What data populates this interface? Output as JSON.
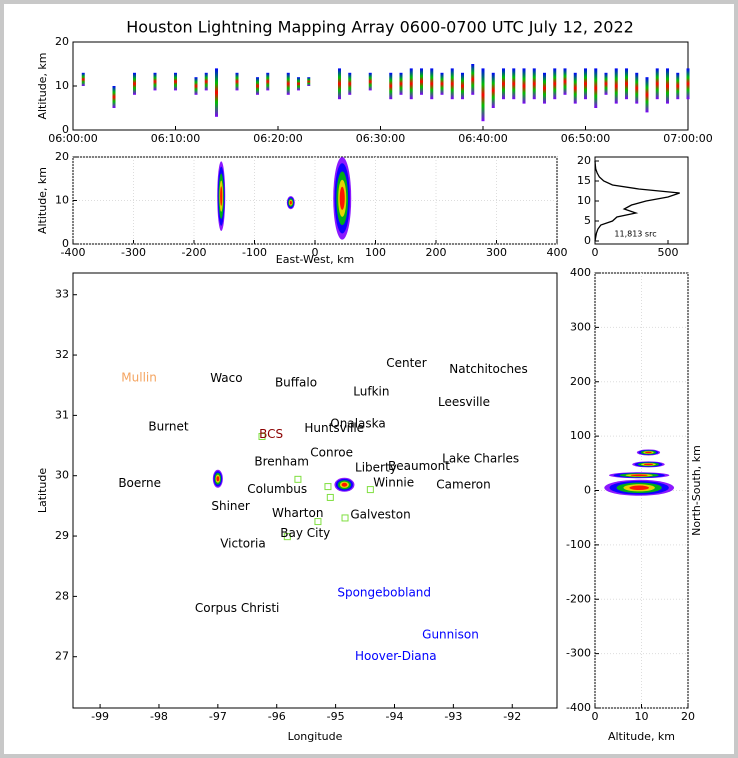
{
  "chart_data": [
    {
      "type": "flashes",
      "title": "Houston Lightning Mapping Array 0600-0700 UTC July 12, 2022",
      "ylabel": "Altitude, km",
      "xlim": [
        0,
        60
      ],
      "ylim": [
        0,
        20
      ],
      "xticks": [
        {
          "value": 0,
          "label": "06:00:00"
        },
        {
          "value": 10,
          "label": "06:10:00"
        },
        {
          "value": 20,
          "label": "06:20:00"
        },
        {
          "value": 30,
          "label": "06:30:00"
        },
        {
          "value": 40,
          "label": "06:40:00"
        },
        {
          "value": 50,
          "label": "06:50:00"
        },
        {
          "value": 60,
          "label": "07:00:00"
        }
      ],
      "yticks": [
        0,
        10,
        20
      ],
      "x": [
        1,
        4,
        6,
        8,
        10,
        12,
        13,
        14,
        16,
        18,
        19,
        21,
        22,
        23,
        26,
        27,
        29,
        31,
        32,
        33,
        34,
        35,
        36,
        37,
        38,
        39,
        40,
        41,
        42,
        43,
        44,
        45,
        46,
        47,
        48,
        49,
        50,
        51,
        52,
        53,
        54,
        55,
        56,
        57,
        58,
        59,
        60
      ],
      "low": [
        10,
        5,
        8,
        9,
        9,
        8,
        9,
        3,
        9,
        8,
        9,
        8,
        9,
        10,
        7,
        8,
        9,
        7,
        8,
        7,
        8,
        7,
        8,
        7,
        7,
        8,
        2,
        5,
        7,
        7,
        6,
        7,
        6,
        7,
        8,
        6,
        7,
        5,
        8,
        6,
        7,
        6,
        4,
        7,
        6,
        7,
        7
      ],
      "high": [
        13,
        10,
        13,
        13,
        13,
        12,
        13,
        14,
        13,
        12,
        13,
        13,
        12,
        12,
        14,
        13,
        13,
        13,
        13,
        14,
        14,
        14,
        13,
        14,
        13,
        15,
        14,
        13,
        14,
        14,
        14,
        14,
        13,
        14,
        14,
        13,
        14,
        14,
        13,
        14,
        14,
        13,
        12,
        14,
        14,
        13,
        14
      ]
    },
    {
      "type": "clusters-x",
      "xlabel": "East-West, km",
      "ylabel": "Altitude, km",
      "xlim": [
        -400,
        400
      ],
      "ylim": [
        0,
        20
      ],
      "xticks": [
        -400,
        -300,
        -200,
        -100,
        0,
        100,
        200,
        300,
        400
      ],
      "yticks": [
        0,
        10,
        20
      ],
      "grid": true,
      "ew": [
        -155,
        -40,
        45
      ],
      "low": [
        3,
        8,
        1
      ],
      "high": [
        19,
        11,
        20
      ]
    },
    {
      "type": "line",
      "annotation": "11,813 src",
      "xlim": [
        0,
        637
      ],
      "ylim": [
        -0.75,
        21
      ],
      "xticks": [
        0,
        500
      ],
      "yticks": [
        0,
        5,
        10,
        15,
        20
      ],
      "x": [
        0,
        5,
        10,
        20,
        40,
        120,
        150,
        280,
        200,
        250,
        350,
        500,
        580,
        300,
        120,
        60,
        30,
        15,
        5,
        2,
        0
      ],
      "y": [
        0,
        1,
        2,
        3,
        4,
        5,
        6,
        7,
        8,
        9,
        10,
        11,
        12,
        13,
        14,
        15,
        16,
        17,
        18,
        19,
        20
      ]
    },
    {
      "type": "map",
      "xlabel": "Longitude",
      "ylabel": "Latitude",
      "xlim": [
        -99.46,
        -91.24
      ],
      "ylim": [
        26.15,
        33.36
      ],
      "xticks": [
        -99,
        -98,
        -97,
        -96,
        -95,
        -94,
        -93,
        -92
      ],
      "yticks": [
        27,
        28,
        29,
        30,
        31,
        32,
        33
      ],
      "labels": [
        {
          "text": "Mullin",
          "lon": -98.64,
          "lat": 31.62,
          "color": "#f4a460"
        },
        {
          "text": "Waco",
          "lon": -97.13,
          "lat": 31.61,
          "color": "#000000"
        },
        {
          "text": "Buffalo",
          "lon": -96.03,
          "lat": 31.54,
          "color": "#000000"
        },
        {
          "text": "Lufkin",
          "lon": -94.7,
          "lat": 31.39,
          "color": "#000000"
        },
        {
          "text": "Center",
          "lon": -94.14,
          "lat": 31.86,
          "color": "#000000"
        },
        {
          "text": "Natchitoches",
          "lon": -93.07,
          "lat": 31.76,
          "color": "#000000"
        },
        {
          "text": "Leesville",
          "lon": -93.26,
          "lat": 31.21,
          "color": "#000000"
        },
        {
          "text": "Burnet",
          "lon": -98.18,
          "lat": 30.81,
          "color": "#000000"
        },
        {
          "text": "BCS",
          "lon": -96.3,
          "lat": 30.68,
          "color": "#8b0000"
        },
        {
          "text": "Huntsville",
          "lon": -95.53,
          "lat": 30.78,
          "color": "#000000"
        },
        {
          "text": "Onalaska",
          "lon": -95.09,
          "lat": 30.86,
          "color": "#000000"
        },
        {
          "text": "Conroe",
          "lon": -95.43,
          "lat": 30.38,
          "color": "#000000"
        },
        {
          "text": "Brenham",
          "lon": -96.38,
          "lat": 30.23,
          "color": "#000000"
        },
        {
          "text": "Liberty",
          "lon": -94.67,
          "lat": 30.13,
          "color": "#000000"
        },
        {
          "text": "Beaumont",
          "lon": -94.11,
          "lat": 30.15,
          "color": "#000000"
        },
        {
          "text": "Lake Charles",
          "lon": -93.19,
          "lat": 30.28,
          "color": "#000000"
        },
        {
          "text": "Boerne",
          "lon": -98.69,
          "lat": 29.87,
          "color": "#000000"
        },
        {
          "text": "Columbus",
          "lon": -96.5,
          "lat": 29.77,
          "color": "#000000"
        },
        {
          "text": "Winnie",
          "lon": -94.36,
          "lat": 29.88,
          "color": "#000000"
        },
        {
          "text": "Cameron",
          "lon": -93.29,
          "lat": 29.85,
          "color": "#000000"
        },
        {
          "text": "Shiner",
          "lon": -97.11,
          "lat": 29.49,
          "color": "#000000"
        },
        {
          "text": "Wharton",
          "lon": -96.08,
          "lat": 29.37,
          "color": "#000000"
        },
        {
          "text": "Galveston",
          "lon": -94.75,
          "lat": 29.35,
          "color": "#000000"
        },
        {
          "text": "Bay City",
          "lon": -95.94,
          "lat": 29.04,
          "color": "#000000"
        },
        {
          "text": "Victoria",
          "lon": -96.96,
          "lat": 28.87,
          "color": "#000000"
        },
        {
          "text": "Corpus Christi",
          "lon": -97.39,
          "lat": 27.8,
          "color": "#000000"
        },
        {
          "text": "Spongebobland",
          "lon": -94.97,
          "lat": 28.06,
          "color": "#0000ff"
        },
        {
          "text": "Gunnison",
          "lon": -93.53,
          "lat": 27.36,
          "color": "#0000ff"
        },
        {
          "text": "Hoover-Diana",
          "lon": -94.67,
          "lat": 27.0,
          "color": "#0000ff"
        }
      ],
      "stations": {
        "color": "#7fdf3f",
        "lon": [
          -96.25,
          -95.64,
          -95.13,
          -95.09,
          -94.41,
          -94.84,
          -95.82,
          -95.3
        ],
        "lat": [
          30.65,
          29.94,
          29.82,
          29.64,
          29.77,
          29.3,
          28.99,
          29.24
        ]
      },
      "storms": {
        "lon": [
          -94.85,
          -97.0
        ],
        "lat": [
          29.85,
          29.95
        ]
      }
    },
    {
      "type": "clusters-y",
      "xlabel": "Altitude, km",
      "ylabel": "North-South, km",
      "xlim": [
        0,
        20
      ],
      "ylim": [
        -400,
        400
      ],
      "xticks": [
        0,
        10,
        20
      ],
      "yticks": [
        -400,
        -300,
        -200,
        -100,
        0,
        100,
        200,
        300,
        400
      ],
      "grid": true,
      "ns": [
        5,
        28,
        48,
        70
      ],
      "low": [
        2,
        3,
        8,
        9
      ],
      "high": [
        17,
        16,
        15,
        14
      ]
    }
  ]
}
